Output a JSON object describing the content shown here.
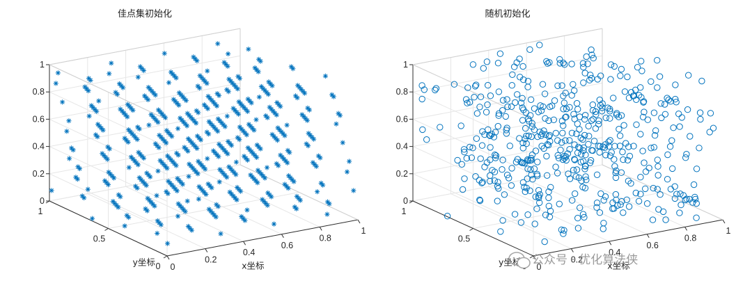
{
  "chart_data": [
    {
      "type": "scatter",
      "dimensions": 3,
      "title": "佳点集初始化",
      "xlabel": "x坐标",
      "ylabel": "y坐标",
      "zlabel": "",
      "xlim": [
        0,
        1
      ],
      "ylim": [
        0,
        1
      ],
      "zlim": [
        0,
        1
      ],
      "xticks": [
        "0",
        "0.2",
        "0.4",
        "0.6",
        "0.8",
        "1"
      ],
      "yticks": [
        "0",
        "0.5",
        "1"
      ],
      "zticks": [
        "0",
        "0.2",
        "0.4",
        "0.6",
        "0.8",
        "1"
      ],
      "grid": true,
      "marker": "asterisk",
      "marker_color": "#0072BD",
      "point_count": 500,
      "generator": {
        "method": "good_point_set",
        "seed": 0
      },
      "x": [],
      "y": [],
      "z": []
    },
    {
      "type": "scatter",
      "dimensions": 3,
      "title": "随机初始化",
      "xlabel": "x坐标",
      "ylabel": "y坐标",
      "zlabel": "",
      "xlim": [
        0,
        1
      ],
      "ylim": [
        0,
        1
      ],
      "zlim": [
        0,
        1
      ],
      "xticks": [
        "0",
        "0.2",
        "0.4",
        "0.6",
        "0.8",
        "1"
      ],
      "yticks": [
        "0",
        "0.5",
        "1"
      ],
      "zticks": [
        "0",
        "0.2",
        "0.4",
        "0.6",
        "0.8",
        "1"
      ],
      "grid": true,
      "marker": "circle",
      "marker_color": "#0072BD",
      "point_count": 500,
      "generator": {
        "method": "uniform_random",
        "seed": 7
      },
      "x": [],
      "y": [],
      "z": []
    }
  ],
  "watermark": {
    "text": "公众号 · 优化算法侠",
    "icon": "wechat-icon"
  }
}
